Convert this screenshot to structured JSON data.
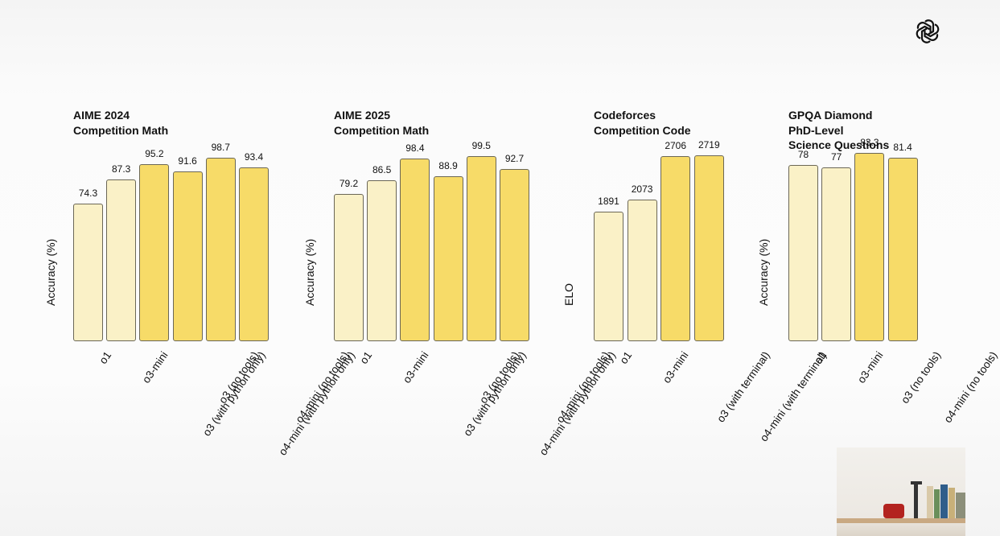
{
  "colors": {
    "light_bar": "#faf1c7",
    "dark_bar": "#f7db68",
    "bar_border": "#6b6756"
  },
  "chart_data": [
    {
      "type": "bar",
      "title": [
        "AIME 2024",
        "Competition Math"
      ],
      "ylabel": "Accuracy (%)",
      "ylim": [
        0,
        130
      ],
      "categories": [
        "o1",
        "o3-mini",
        "o3 (with python only)",
        "o3 (no tools)",
        "o4-mini (with python only)",
        "o4-mini (no tools)"
      ],
      "values": [
        74.3,
        87.3,
        95.2,
        91.6,
        98.7,
        93.4
      ],
      "value_labels": [
        "74.3",
        "87.3",
        "95.2",
        "91.6",
        "98.7",
        "93.4"
      ],
      "shades": [
        "light",
        "light",
        "dark",
        "dark",
        "dark",
        "dark"
      ]
    },
    {
      "type": "bar",
      "title": [
        "AIME 2025",
        "Competition Math"
      ],
      "ylabel": "Accuracy (%)",
      "ylim": [
        0,
        130
      ],
      "categories": [
        "o1",
        "o3-mini",
        "o3 (with python only)",
        "o3 (no tools)",
        "o4-mini (with python only)",
        "o4-mini (no tools)"
      ],
      "values": [
        79.2,
        86.5,
        98.4,
        88.9,
        99.5,
        92.7
      ],
      "value_labels": [
        "79.2",
        "86.5",
        "98.4",
        "88.9",
        "99.5",
        "92.7"
      ],
      "shades": [
        "light",
        "light",
        "dark",
        "dark",
        "dark",
        "dark"
      ]
    },
    {
      "type": "bar",
      "title": [
        "Codeforces",
        "Competition Code"
      ],
      "ylabel": "ELO",
      "ylim": [
        0,
        3530
      ],
      "categories": [
        "o1",
        "o3-mini",
        "o3 (with terminal)",
        "o4-mini (with terminal)"
      ],
      "values": [
        1891,
        2073,
        2706,
        2719
      ],
      "value_labels": [
        "1891",
        "2073",
        "2706",
        "2719"
      ],
      "shades": [
        "light",
        "light",
        "dark",
        "dark"
      ]
    },
    {
      "type": "bar",
      "title": [
        "GPQA Diamond",
        "PhD-Level",
        "Science Questions"
      ],
      "ylabel": "Accuracy (%)",
      "ylim": [
        0,
        107
      ],
      "categories": [
        "o1",
        "o3-mini",
        "o3 (no tools)",
        "o4-mini (no tools)"
      ],
      "values": [
        78,
        77,
        83.3,
        81.4
      ],
      "value_labels": [
        "78",
        "77",
        "83.3",
        "81.4"
      ],
      "shades": [
        "light",
        "light",
        "dark",
        "dark"
      ]
    }
  ]
}
